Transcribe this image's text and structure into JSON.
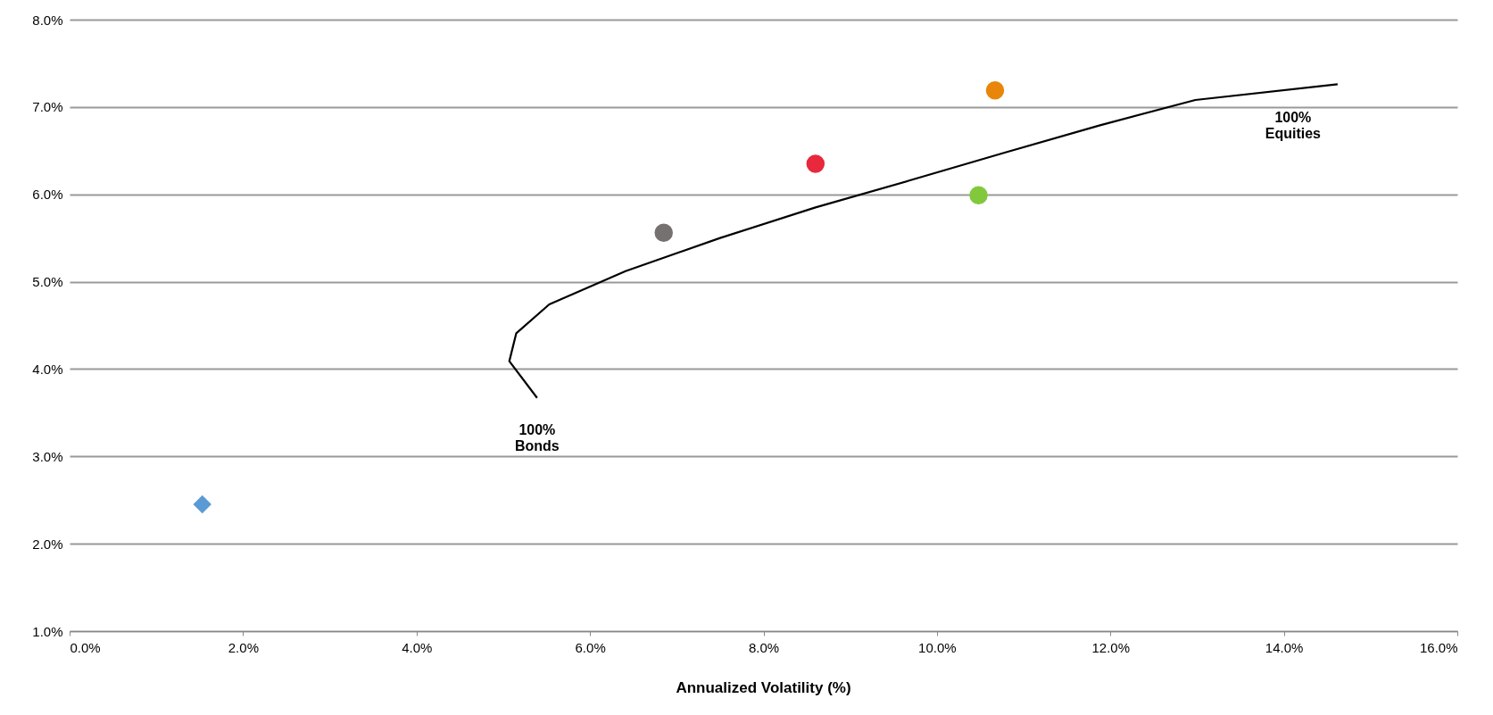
{
  "chart_data": {
    "type": "scatter",
    "xlabel": "Annualized Volatility (%)",
    "xlim": [
      0,
      16
    ],
    "ylim": [
      1,
      8
    ],
    "xticks": [
      {
        "value": 0,
        "label": "0.0%"
      },
      {
        "value": 2,
        "label": "2.0%"
      },
      {
        "value": 4,
        "label": "4.0%"
      },
      {
        "value": 6,
        "label": "6.0%"
      },
      {
        "value": 8,
        "label": "8.0%"
      },
      {
        "value": 10,
        "label": "10.0%"
      },
      {
        "value": 12,
        "label": "12.0%"
      },
      {
        "value": 14,
        "label": "14.0%"
      },
      {
        "value": 16,
        "label": "16.0%"
      }
    ],
    "yticks": [
      {
        "value": 1,
        "label": "1.0%"
      },
      {
        "value": 2,
        "label": "2.0%"
      },
      {
        "value": 3,
        "label": "3.0%"
      },
      {
        "value": 4,
        "label": "4.0%"
      },
      {
        "value": 5,
        "label": "5.0%"
      },
      {
        "value": 6,
        "label": "6.0%"
      },
      {
        "value": 7,
        "label": "7.0%"
      },
      {
        "value": 8,
        "label": "8.0%"
      }
    ],
    "grid": "y",
    "legend": false,
    "series": [
      {
        "type": "line",
        "color": "#000000",
        "marker": "none",
        "line_style": "solid",
        "x": [
          5.39,
          5.07,
          5.15,
          5.53,
          6.41,
          7.5,
          8.6,
          9.69,
          10.79,
          11.88,
          12.98,
          14.62
        ],
        "values": [
          3.67,
          4.09,
          4.41,
          4.74,
          5.12,
          5.5,
          5.85,
          6.16,
          6.48,
          6.79,
          7.08,
          7.26
        ]
      },
      {
        "type": "scatter",
        "color": "#5b9bd5",
        "marker": "diamond",
        "x": [
          1.53
        ],
        "values": [
          2.45
        ]
      },
      {
        "type": "scatter",
        "color": "#767171",
        "marker": "circle",
        "x": [
          6.85
        ],
        "values": [
          5.56
        ]
      },
      {
        "type": "scatter",
        "color": "#e8283c",
        "marker": "circle",
        "x": [
          8.6
        ],
        "values": [
          6.35
        ]
      },
      {
        "type": "scatter",
        "color": "#e8860a",
        "marker": "circle",
        "x": [
          10.67
        ],
        "values": [
          7.19
        ]
      },
      {
        "type": "scatter",
        "color": "#82c83c",
        "marker": "circle",
        "x": [
          10.48
        ],
        "values": [
          5.99
        ]
      }
    ],
    "annotations": [
      "100%\nBonds",
      "100%\nEquities"
    ]
  }
}
